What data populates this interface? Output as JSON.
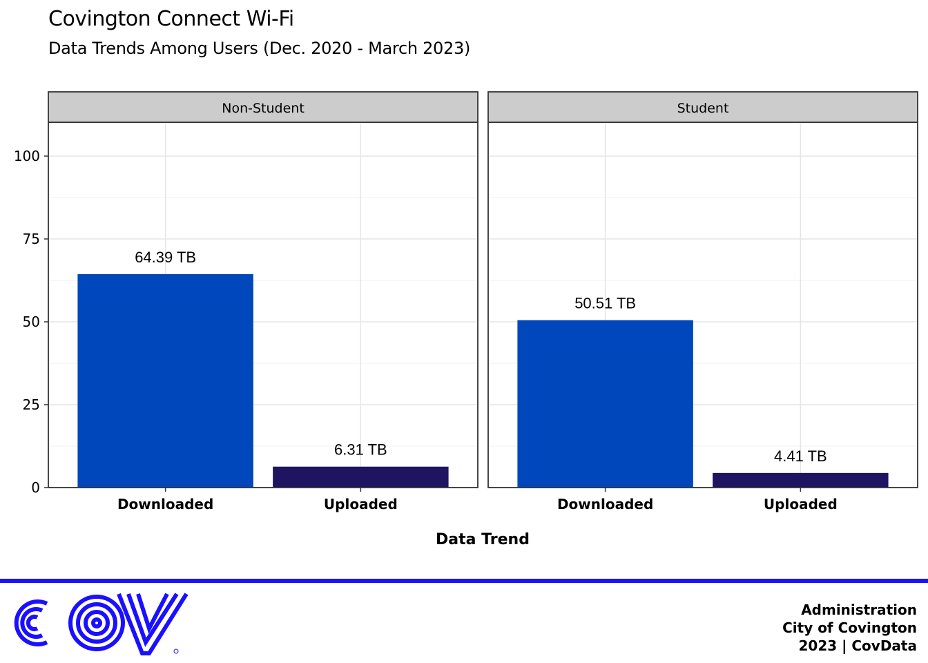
{
  "header": {
    "title": "Covington Connect Wi-Fi",
    "subtitle": "Data Trends Among Users (Dec. 2020 - March 2023)"
  },
  "chart_data": {
    "type": "bar",
    "title": "Covington Connect Wi-Fi",
    "subtitle": "Data Trends Among Users (Dec. 2020 - March 2023)",
    "xlabel": "Data Trend",
    "ylabel": "",
    "ylim": [
      0,
      110
    ],
    "yticks": [
      0,
      25,
      50,
      75,
      100
    ],
    "categories": [
      "Downloaded",
      "Uploaded"
    ],
    "colors": {
      "Downloaded": "#0047bb",
      "Uploaded": "#1f1461"
    },
    "grid": true,
    "panels": [
      {
        "facet": "Non-Student",
        "values": [
          64.39,
          6.31
        ],
        "labels": [
          "64.39 TB",
          "6.31 TB"
        ]
      },
      {
        "facet": "Student",
        "values": [
          50.51,
          4.41
        ],
        "labels": [
          "50.51 TB",
          "4.41 TB"
        ]
      }
    ]
  },
  "footer": {
    "line1": "Administration",
    "line2": "City of Covington",
    "line3": "2023 | CovData",
    "logo_text": "COV",
    "accent_color": "#1a10ff"
  }
}
